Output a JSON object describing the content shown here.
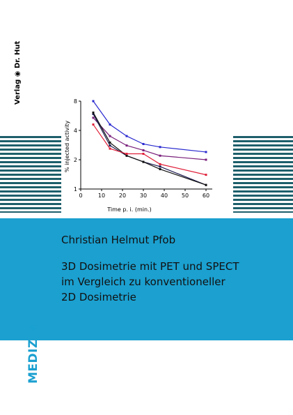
{
  "publisher": [
    "Verlag",
    "Dr. Hut"
  ],
  "chart_data": {
    "type": "line",
    "xlabel": "Time p. i. (min.)",
    "ylabel": "% injected activity",
    "x": [
      6,
      14,
      22,
      30,
      38,
      60
    ],
    "series": [
      {
        "color": "#2a2ad0",
        "values": [
          8,
          4.6,
          3.5,
          2.9,
          2.7,
          2.4
        ]
      },
      {
        "color": "#7a1f7a",
        "values": [
          5.4,
          3.5,
          2.8,
          2.5,
          2.2,
          2.0
        ]
      },
      {
        "color": "#1a1a50",
        "values": [
          5.9,
          2.8,
          2.2,
          1.9,
          1.7,
          1.1
        ]
      },
      {
        "color": "#111111",
        "values": [
          6.1,
          3.0,
          2.2,
          1.9,
          1.6,
          1.1
        ]
      },
      {
        "color": "#e0203a",
        "values": [
          4.6,
          2.6,
          2.3,
          2.3,
          1.8,
          1.4
        ]
      }
    ],
    "xlim": [
      0,
      63
    ],
    "ylim": [
      1,
      8
    ],
    "log_y": true,
    "xticks": [
      0,
      10,
      20,
      30,
      40,
      50,
      60
    ],
    "yticks": [
      1,
      2,
      4,
      8
    ]
  },
  "author": "Christian Helmut Pfob",
  "title_lines": [
    "3D Dosimetrie mit PET und SPECT",
    "im Vergleich zu konventioneller",
    "2D Dosimetrie"
  ],
  "series_label": "MEDIZIN"
}
